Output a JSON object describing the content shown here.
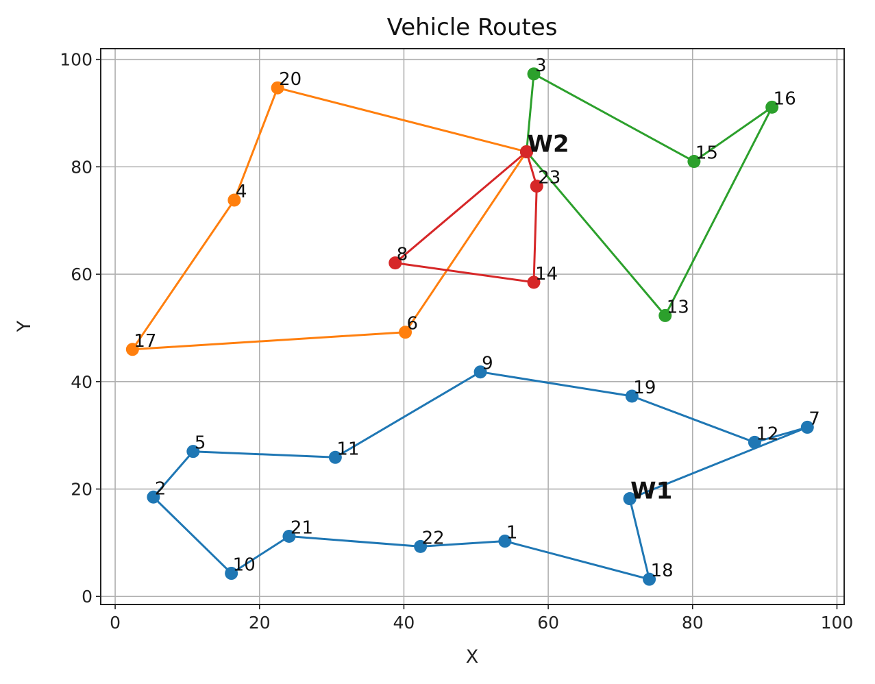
{
  "chart_data": {
    "type": "line",
    "title": "Vehicle Routes",
    "xlabel": "X",
    "ylabel": "Y",
    "xlim": [
      -2,
      101
    ],
    "ylim": [
      -1.5,
      102
    ],
    "xticks": [
      0,
      20,
      40,
      60,
      80,
      100
    ],
    "yticks": [
      0,
      20,
      40,
      60,
      80,
      100
    ],
    "grid": true,
    "depots": [
      {
        "label": "W1",
        "x": 71.3,
        "y": 18.2
      },
      {
        "label": "W2",
        "x": 57.0,
        "y": 82.8
      }
    ],
    "points": [
      {
        "label": "1",
        "x": 54.0,
        "y": 10.3
      },
      {
        "label": "2",
        "x": 5.3,
        "y": 18.5
      },
      {
        "label": "3",
        "x": 58.0,
        "y": 97.3
      },
      {
        "label": "4",
        "x": 16.5,
        "y": 73.8
      },
      {
        "label": "5",
        "x": 10.8,
        "y": 27.0
      },
      {
        "label": "6",
        "x": 40.2,
        "y": 49.2
      },
      {
        "label": "7",
        "x": 95.9,
        "y": 31.5
      },
      {
        "label": "8",
        "x": 38.8,
        "y": 62.1
      },
      {
        "label": "9",
        "x": 50.6,
        "y": 41.8
      },
      {
        "label": "10",
        "x": 16.1,
        "y": 4.3
      },
      {
        "label": "11",
        "x": 30.5,
        "y": 25.9
      },
      {
        "label": "12",
        "x": 88.6,
        "y": 28.7
      },
      {
        "label": "13",
        "x": 76.2,
        "y": 52.3
      },
      {
        "label": "14",
        "x": 58.0,
        "y": 58.5
      },
      {
        "label": "15",
        "x": 80.2,
        "y": 81.0
      },
      {
        "label": "16",
        "x": 91.0,
        "y": 91.1
      },
      {
        "label": "17",
        "x": 2.4,
        "y": 46.0
      },
      {
        "label": "18",
        "x": 74.0,
        "y": 3.2
      },
      {
        "label": "19",
        "x": 71.6,
        "y": 37.3
      },
      {
        "label": "20",
        "x": 22.5,
        "y": 94.7
      },
      {
        "label": "21",
        "x": 24.1,
        "y": 11.2
      },
      {
        "label": "22",
        "x": 42.3,
        "y": 9.3
      },
      {
        "label": "23",
        "x": 58.4,
        "y": 76.4
      }
    ],
    "series": [
      {
        "color": "#1f77b4",
        "stops": [
          "W1",
          "18",
          "1",
          "22",
          "21",
          "10",
          "2",
          "5",
          "11",
          "9",
          "19",
          "12",
          "7",
          "W1"
        ]
      },
      {
        "color": "#ff7f0e",
        "stops": [
          "W2",
          "20",
          "4",
          "17",
          "6",
          "W2"
        ]
      },
      {
        "color": "#2ca02c",
        "stops": [
          "W2",
          "3",
          "15",
          "16",
          "13",
          "W2"
        ]
      },
      {
        "color": "#d62728",
        "stops": [
          "W2",
          "8",
          "14",
          "23",
          "W2"
        ]
      }
    ]
  }
}
